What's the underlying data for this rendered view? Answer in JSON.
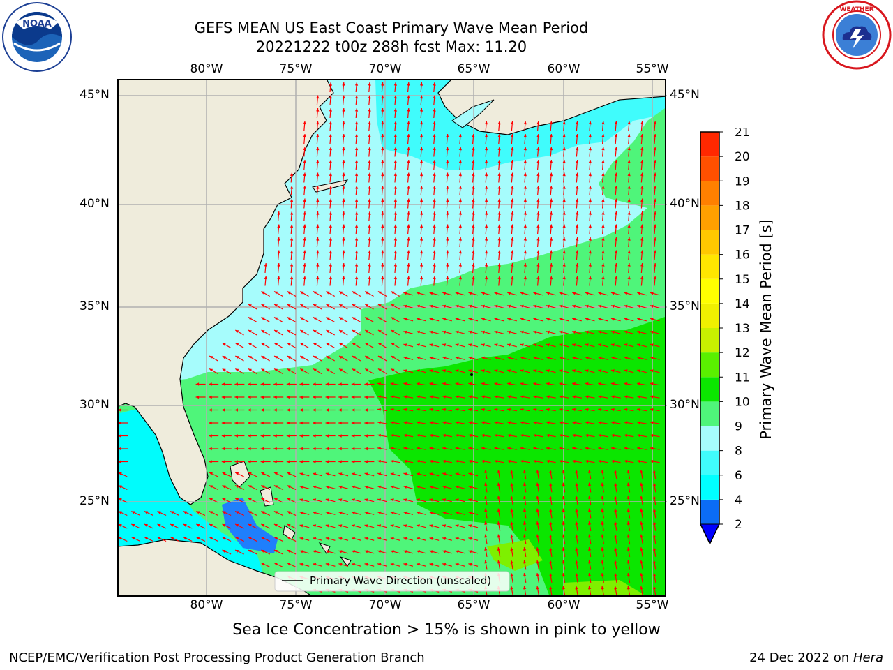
{
  "header": {
    "title_line1": "GEFS MEAN US East Coast Primary Wave Mean Period",
    "title_line2": "20221222 t00z 288h fcst   Max: 11.20"
  },
  "logos": {
    "left": "NOAA",
    "left_ring_text": "NATIONAL OCEANIC AND ATMOSPHERIC ADMINISTRATION · U.S. DEPARTMENT OF COMMERCE",
    "right_ring_text": "NATIONAL WEATHER SERVICE"
  },
  "map": {
    "lon_ticks": [
      "80°W",
      "75°W",
      "70°W",
      "65°W",
      "60°W",
      "55°W"
    ],
    "lat_ticks": [
      "45°N",
      "40°N",
      "35°N",
      "30°N",
      "25°N"
    ],
    "legend_label": "Primary Wave Direction (unscaled)",
    "colors": {
      "land": "#efecdc",
      "ocean_8_9": "#a6fcfc",
      "ocean_6_8": "#3dfcfc",
      "ocean_4_6": "#00fcfc",
      "ocean_2_4": "#1f7ffc",
      "ocean_9_10": "#4ff57a",
      "ocean_10_11": "#16e600",
      "ocean_11_12": "#7ef000",
      "arrow": "#ff0000",
      "grid": "#b0b0b0"
    }
  },
  "colorbar": {
    "label": "Primary Wave Mean Period [s]",
    "ticks": [
      "2",
      "4",
      "6",
      "8",
      "9",
      "10",
      "11",
      "12",
      "13",
      "14",
      "15",
      "16",
      "17",
      "18",
      "19",
      "20",
      "21"
    ],
    "colors": [
      "#0b6cf5",
      "#00ffff",
      "#40fcfc",
      "#a6fcfc",
      "#4ff57a",
      "#0be600",
      "#5af000",
      "#c8f000",
      "#f0f000",
      "#ffff00",
      "#ffe600",
      "#ffc800",
      "#ffa000",
      "#ff8000",
      "#ff5000",
      "#ff2800",
      "#ff0000"
    ],
    "extend_color": "#0000ff"
  },
  "footer": {
    "sea_ice_note": "Sea Ice Concentration > 15% is shown in pink to yellow",
    "credit": "NCEP/EMC/Verification Post Processing Product Generation Branch",
    "date": "24 Dec 2022 on ",
    "machine": "Hera"
  }
}
